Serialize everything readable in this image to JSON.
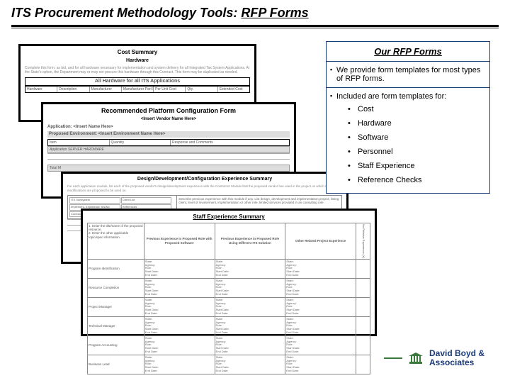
{
  "title": {
    "prefix": "ITS Procurement Methodology Tools: ",
    "underlined": "RFP Forms"
  },
  "sidebar": {
    "heading": "Our RFP Forms",
    "bullets": [
      "We provide form templates for most types of RFP forms.",
      "Included are form templates for:"
    ],
    "items": [
      "Cost",
      "Hardware",
      "Software",
      "Personnel",
      "Staff Experience",
      "Reference Checks"
    ]
  },
  "forms": {
    "card1": {
      "title": "Cost Summary",
      "sub": "Hardware",
      "blurb": "Complete this form, as bid, and for all hardware necessary for implementation and system delivery for all Integrated Tax System Applications. At the State's option, the Department may or may not procure this hardware through this Contract. This form may be duplicated as needed.",
      "banner": "All Hardware for all ITS Applications",
      "cols": [
        "Hardware",
        "Description",
        "Manufacturer",
        "Manufacturer Part No.",
        "Per Unit Cost",
        "Qty.",
        "Extended Cost"
      ]
    },
    "card2": {
      "title": "Recommended Platform Configuration Form",
      "vendor": "<Insert Vendor Name Here>",
      "app": "Application: <Insert Name Here>",
      "env": "Proposed Environment: <Insert Environment Name Here>",
      "cols": [
        "Item",
        "Quantity",
        "Response and Comments"
      ],
      "section": "Application SERVER HARDWARE",
      "total": "Total M"
    },
    "card3": {
      "title": "Design/Development/Configuration Experience Summary",
      "blurb": "For each application module, list each of the proposed vendor's design/development experience with the Contractor Module that the proposed vendor has used in the project on which the modifications are proposed to be used on.",
      "left_labels": [
        "ITS Subsystem",
        "Client List",
        "Implement. Experience Yes/No",
        "References",
        "Contractor",
        "Public/Priv."
      ],
      "right_text": "Describe previous experience with this module if any. List design, development and implementation project, listing client, level of involvement, implementation or other role, limited services provided in an consulting role."
    },
    "card4": {
      "title": "Staff Experience Summary",
      "left_items": [
        "1. Enter the title/name of the proposed resource.",
        "2. Enter the other applicable topic/spec information."
      ],
      "cols": [
        "Previous Experience in Proposed Role with Proposed Software",
        "Previous Experience in Proposed Role Using Different ITS Solution",
        "Other Related Project Experience"
      ],
      "side_label": "No Relative Experience (X)",
      "row_labels": [
        "Program Identification",
        "Resource Completion",
        "Project Manager",
        "Technical Manager",
        "Program Accounting",
        "Business Lead"
      ],
      "cell_lines": [
        "State:",
        "Agency:",
        "Role:",
        "Start Date:",
        "End Date:"
      ]
    }
  },
  "footer": {
    "line1": "David Boyd &",
    "line2": "Associates"
  },
  "colors": {
    "border_navy": "#1a3a7a",
    "logo_green": "#3a7a3a"
  }
}
